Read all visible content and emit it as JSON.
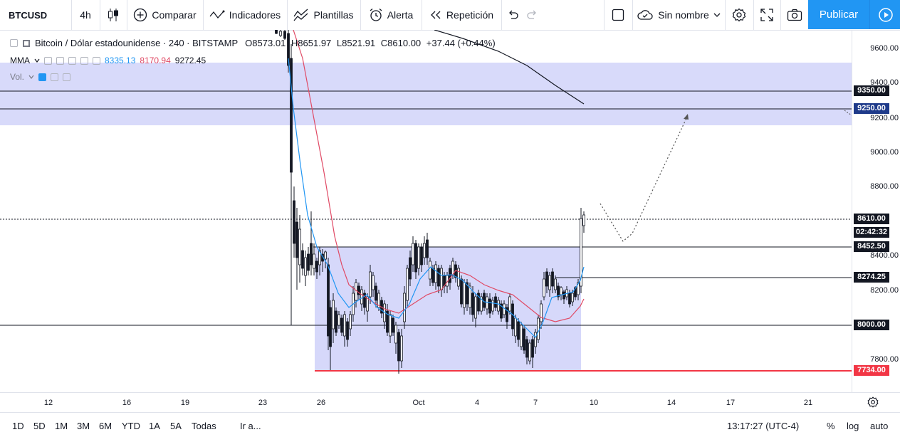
{
  "toolbar": {
    "symbol": "BTCUSD",
    "interval": "4h",
    "compare": "Comparar",
    "indicators": "Indicadores",
    "templates": "Plantillas",
    "alert": "Alerta",
    "replay": "Repetición",
    "layout_name": "Sin nombre",
    "publish": "Publicar",
    "icons": [
      "candles-icon",
      "plus-circle-icon",
      "indicators-icon",
      "templates-icon",
      "alarm-icon",
      "replay-icon",
      "undo-icon",
      "redo-icon",
      "fullscreen-square-icon",
      "cloud-icon",
      "gear-icon",
      "expand-icon",
      "camera-icon",
      "play-icon"
    ]
  },
  "legend": {
    "title": "Bitcoin / Dólar estadounidense · 240 · BITSTAMP",
    "open": "O8573.01",
    "high": "H8651.97",
    "low": "L8521.91",
    "close": "C8610.00",
    "change": "+37.44 (+0.44%)",
    "mma_label": "MMA",
    "mma_v1": "8335.13",
    "mma_v2": "8170.94",
    "mma_v3": "9272.45",
    "vol_label": "Vol."
  },
  "price_scale": {
    "ticks": [
      "9600.00",
      "9400.00",
      "9200.00",
      "9000.00",
      "8800.00",
      "8400.00",
      "8200.00",
      "7800.00"
    ],
    "tags": [
      {
        "value": "9350.00",
        "bg": "#131722"
      },
      {
        "value": "9250.00",
        "bg": "#1e3a8a"
      },
      {
        "value": "8610.00",
        "bg": "#131722"
      },
      {
        "value": "02:42:32",
        "bg": "#131722"
      },
      {
        "value": "8452.50",
        "bg": "#131722"
      },
      {
        "value": "8274.25",
        "bg": "#131722"
      },
      {
        "value": "8000.00",
        "bg": "#131722"
      },
      {
        "value": "7734.00",
        "bg": "#f23645"
      }
    ]
  },
  "time_axis": [
    "12",
    "16",
    "19",
    "23",
    "26",
    "Oct",
    "4",
    "7",
    "10",
    "14",
    "17",
    "21"
  ],
  "bottom": {
    "ranges": [
      "1D",
      "5D",
      "1M",
      "3M",
      "6M",
      "YTD",
      "1A",
      "5A",
      "Todas"
    ],
    "goto": "Ir a...",
    "clock": "13:17:27 (UTC-4)",
    "percent": "%",
    "log": "log",
    "auto": "auto"
  },
  "colors": {
    "accent": "#2196f3",
    "zone": "#d1d4f9",
    "support": "#f23645",
    "ma_fast": "#2196f3",
    "ma_slow": "#e04a65",
    "ma_long": "#131722"
  }
}
